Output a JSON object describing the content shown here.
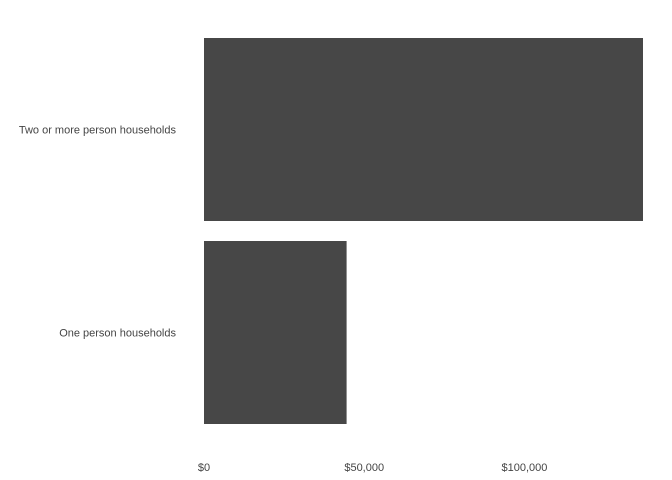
{
  "chart_data": {
    "type": "bar",
    "orientation": "horizontal",
    "title": "",
    "xlabel": "",
    "ylabel": "",
    "categories": [
      "Two or more person households",
      "One person households"
    ],
    "values": [
      137000,
      44500
    ],
    "xlim": [
      0,
      137000
    ],
    "xticks": [
      0,
      50000,
      100000
    ],
    "xtick_labels": [
      "$0",
      "$50,000",
      "$100,000"
    ],
    "grid": false,
    "bar_color": "#474747",
    "text_color": "#444444"
  }
}
